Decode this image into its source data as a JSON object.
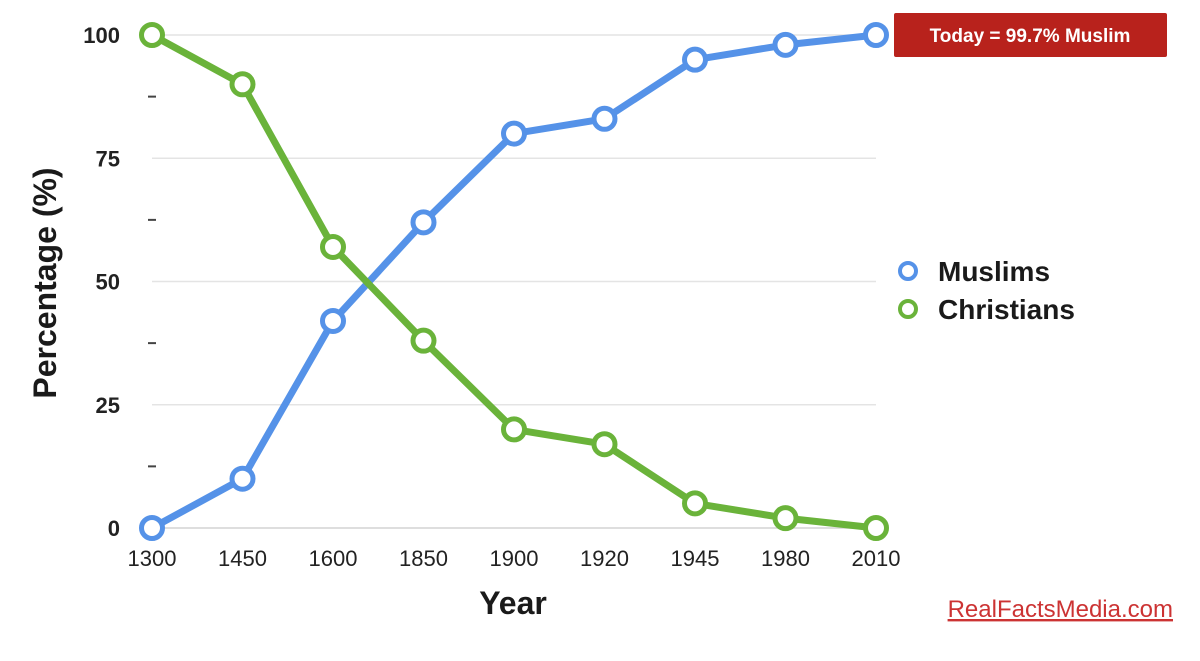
{
  "chart_data": {
    "type": "line",
    "title": "",
    "xlabel": "Year",
    "ylabel": "Percentage (%)",
    "categories": [
      "1300",
      "1450",
      "1600",
      "1850",
      "1900",
      "1920",
      "1945",
      "1980",
      "2010"
    ],
    "ylim": [
      0,
      100
    ],
    "yticks": [
      0,
      25,
      50,
      75,
      100
    ],
    "grid": true,
    "legend_position": "right",
    "series": [
      {
        "name": "Muslims",
        "color": "#5592e8",
        "values": [
          0,
          10,
          42,
          62,
          80,
          83,
          95,
          98,
          100
        ]
      },
      {
        "name": "Christians",
        "color": "#6ab33a",
        "values": [
          100,
          90,
          57,
          38,
          20,
          17,
          5,
          2,
          0
        ]
      }
    ],
    "annotation": {
      "text": "Today = 99.7% Muslim",
      "color": "#b8221c"
    },
    "source": {
      "text": "RealFactsMedia.com",
      "color": "#cc3333"
    }
  }
}
